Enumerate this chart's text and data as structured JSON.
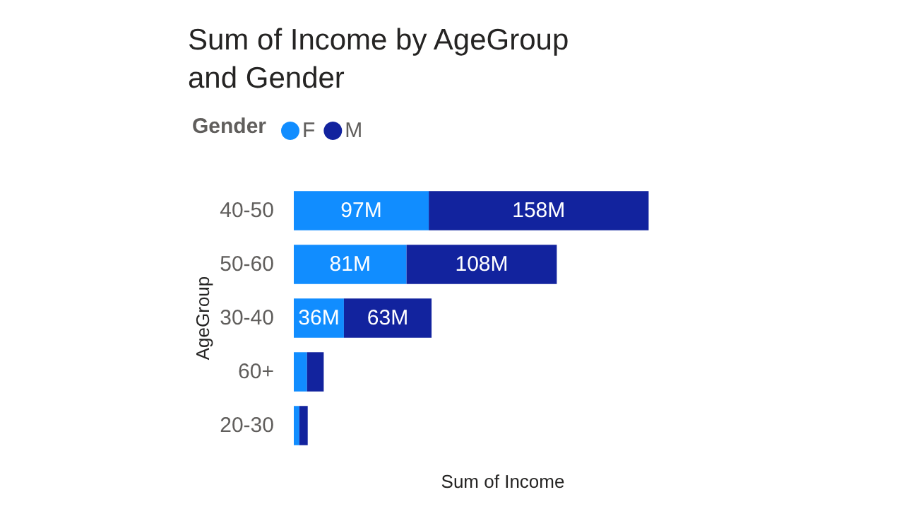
{
  "chart_data": {
    "type": "bar",
    "orientation": "horizontal",
    "stacked": true,
    "title": "Sum of Income by AgeGroup and Gender",
    "xlabel": "Sum of Income",
    "ylabel": "AgeGroup",
    "legend_title": "Gender",
    "legend": "top left",
    "grid": false,
    "categories": [
      "40-50",
      "50-60",
      "30-40",
      "60+",
      "20-30"
    ],
    "series": [
      {
        "name": "F",
        "color": "#118dff",
        "values": [
          97,
          81,
          36,
          9.5,
          4
        ],
        "value_labels": [
          "97M",
          "81M",
          "36M",
          null,
          null
        ]
      },
      {
        "name": "M",
        "color": "#12239e",
        "values": [
          158,
          108,
          63,
          12,
          6
        ],
        "value_labels": [
          "158M",
          "108M",
          "63M",
          null,
          null
        ]
      }
    ]
  }
}
